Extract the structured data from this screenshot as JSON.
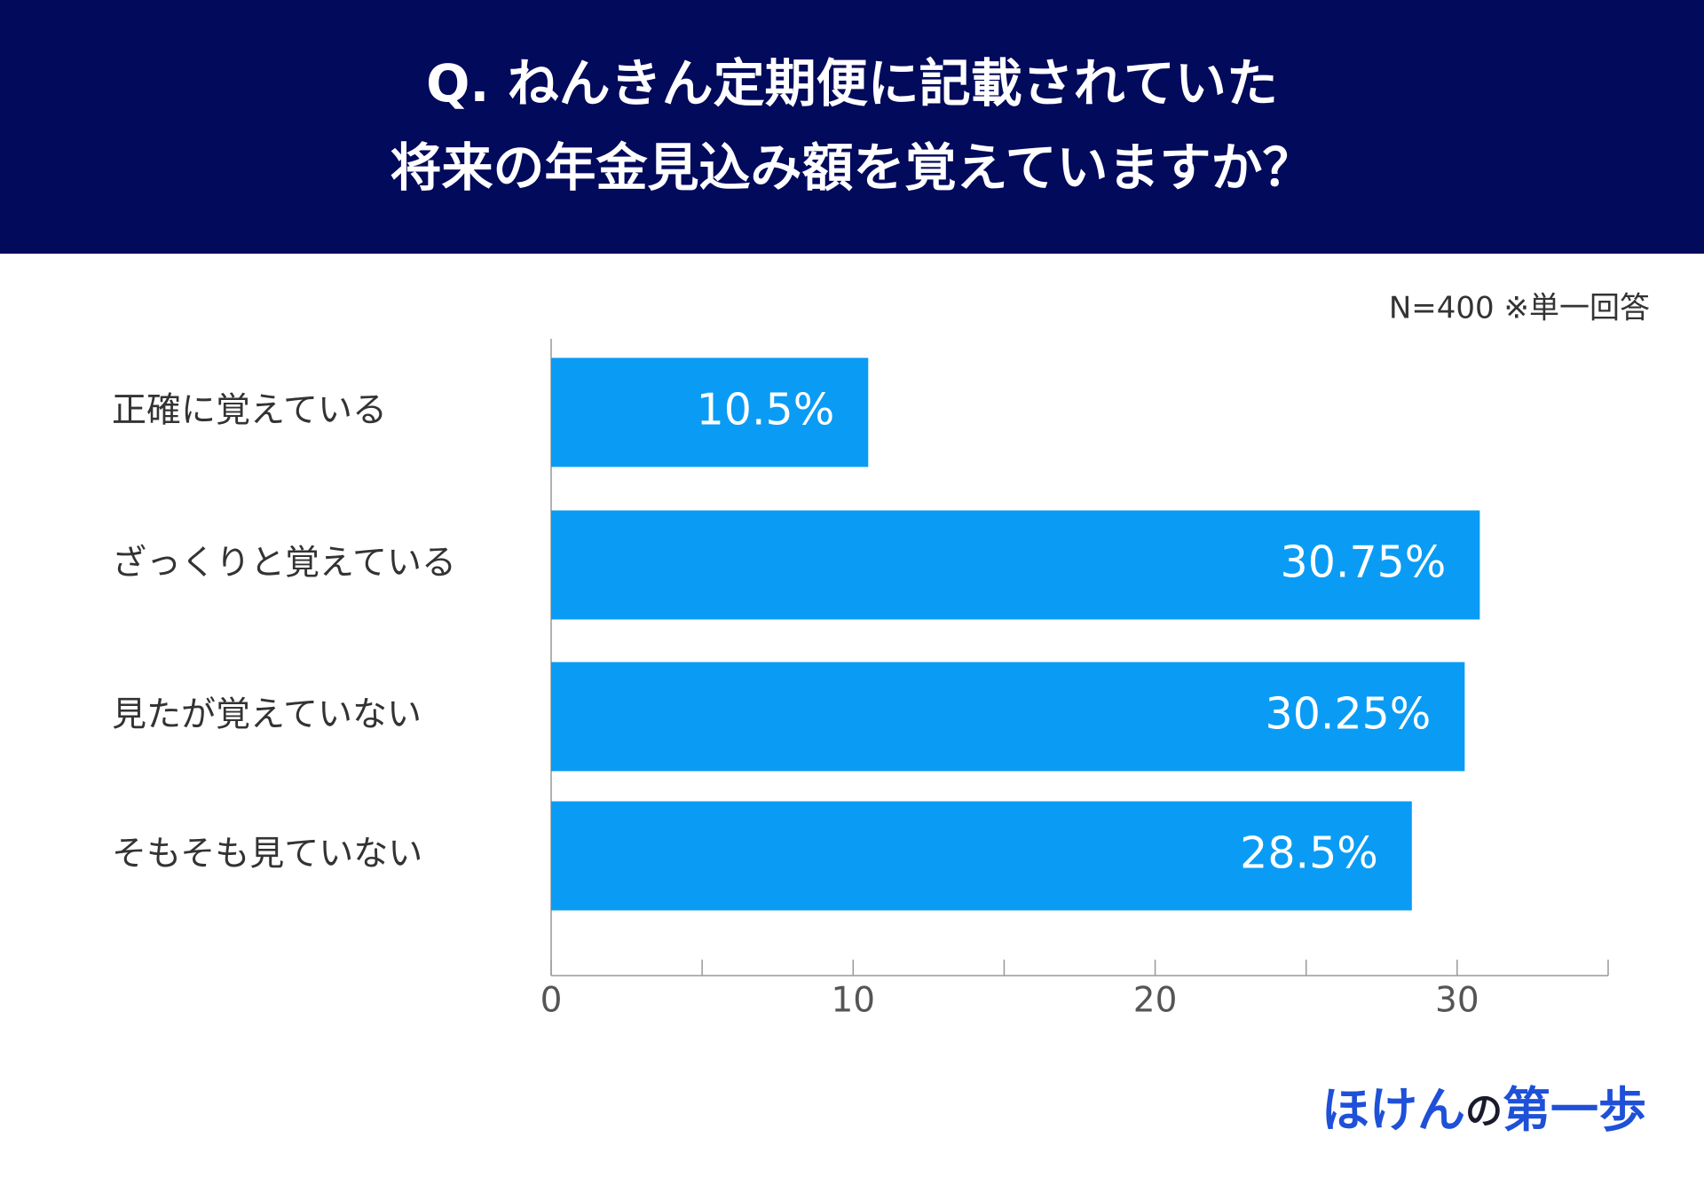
{
  "chart_data": {
    "type": "hbar",
    "title": [
      "Q. ねんきん定期便に記載されていた",
      "将来の年金見込み額を覚えていますか？"
    ],
    "note": "N=400 ※単一回答",
    "categories": [
      "正確に覚えている",
      "ざっくりと覚えている",
      "見たが覚えていない",
      "そもそも見ていない"
    ],
    "values": [
      10.5,
      30.75,
      30.25,
      28.5
    ],
    "value_labels": [
      "10.5%",
      "30.75%",
      "30.25%",
      "28.5%"
    ],
    "color": "#0a9cf5",
    "xlim": [
      0,
      35
    ],
    "xticks": [
      0,
      10,
      20,
      30
    ],
    "xminorticks": [
      5,
      15,
      25,
      35
    ],
    "logo": [
      "ほけん",
      "の",
      "第一歩"
    ]
  }
}
